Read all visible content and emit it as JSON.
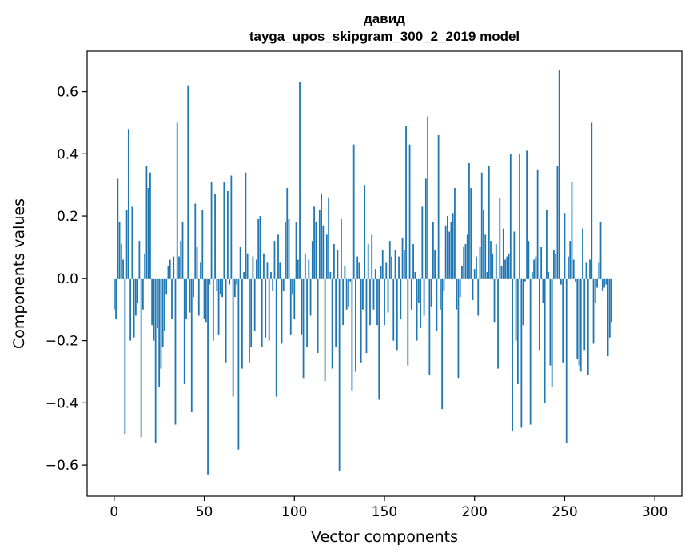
{
  "chart_data": {
    "type": "bar",
    "title": "давид",
    "subtitle": "tayga_upos_skipgram_300_2_2019 model",
    "xlabel": "Vector components",
    "ylabel": "Components values",
    "xlim": [
      -15,
      315
    ],
    "ylim": [
      -0.7,
      0.73
    ],
    "xticks": [
      0,
      50,
      100,
      150,
      200,
      250,
      300
    ],
    "yticks": [
      -0.6,
      -0.4,
      -0.2,
      0.0,
      0.2,
      0.4,
      0.6
    ],
    "xtick_labels": [
      "0",
      "50",
      "100",
      "150",
      "200",
      "250",
      "300"
    ],
    "ytick_labels": [
      "−0.6",
      "−0.4",
      "−0.2",
      "0.0",
      "0.2",
      "0.4",
      "0.6"
    ],
    "bar_color": "#1f77b4",
    "grid": false,
    "values": [
      -0.1,
      -0.13,
      0.32,
      0.18,
      0.11,
      0.06,
      -0.5,
      0.22,
      0.48,
      -0.2,
      0.23,
      -0.19,
      -0.12,
      -0.08,
      0.12,
      -0.51,
      -0.1,
      0.08,
      0.36,
      0.29,
      0.34,
      -0.15,
      -0.2,
      -0.53,
      -0.16,
      -0.35,
      -0.29,
      -0.22,
      -0.17,
      -0.05,
      0.04,
      0.06,
      -0.13,
      0.07,
      -0.47,
      0.5,
      0.07,
      0.12,
      0.18,
      -0.34,
      -0.13,
      0.62,
      -0.11,
      -0.43,
      -0.06,
      0.24,
      0.1,
      -0.12,
      0.05,
      0.22,
      -0.13,
      -0.14,
      -0.63,
      -0.02,
      0.31,
      -0.2,
      0.27,
      -0.04,
      -0.18,
      -0.05,
      -0.06,
      0.31,
      -0.27,
      0.28,
      -0.02,
      0.33,
      -0.38,
      -0.06,
      -0.02,
      -0.55,
      0.1,
      -0.29,
      0.02,
      0.34,
      0.08,
      -0.27,
      -0.22,
      0.07,
      -0.17,
      0.06,
      0.19,
      0.2,
      -0.22,
      0.08,
      -0.19,
      0.05,
      -0.2,
      0.02,
      -0.04,
      0.12,
      -0.38,
      0.14,
      0.05,
      -0.21,
      -0.04,
      0.18,
      0.29,
      0.19,
      -0.18,
      -0.05,
      -0.13,
      0.18,
      0.06,
      0.63,
      -0.18,
      -0.32,
      0.08,
      -0.22,
      0.06,
      -0.12,
      0.12,
      0.23,
      0.18,
      -0.24,
      0.22,
      0.27,
      0.17,
      -0.33,
      0.14,
      0.26,
      0.02,
      -0.29,
      0.11,
      -0.22,
      0.09,
      -0.62,
      0.19,
      -0.15,
      0.04,
      -0.1,
      -0.09,
      -0.01,
      -0.36,
      0.43,
      -0.3,
      0.07,
      0.05,
      -0.27,
      -0.1,
      0.3,
      -0.24,
      0.11,
      -0.15,
      0.14,
      -0.1,
      0.03,
      -0.15,
      -0.39,
      0.04,
      0.09,
      -0.15,
      0.05,
      -0.11,
      0.12,
      0.07,
      -0.2,
      0.09,
      -0.23,
      0.07,
      -0.13,
      0.13,
      0.09,
      0.49,
      -0.28,
      0.43,
      -0.1,
      0.11,
      0.02,
      -0.2,
      -0.08,
      -0.16,
      0.23,
      -0.12,
      0.32,
      0.52,
      -0.31,
      -0.09,
      0.18,
      0.09,
      -0.17,
      0.46,
      -0.1,
      -0.42,
      -0.04,
      0.17,
      0.2,
      0.15,
      0.18,
      0.21,
      0.29,
      -0.1,
      -0.32,
      -0.06,
      0.04,
      0.1,
      0.11,
      0.14,
      0.37,
      0.29,
      -0.07,
      0.03,
      0.07,
      -0.12,
      0.1,
      0.34,
      0.22,
      0.14,
      0.02,
      0.36,
      0.12,
      0.08,
      -0.14,
      0.11,
      -0.29,
      0.26,
      0.04,
      0.16,
      0.06,
      0.07,
      0.08,
      0.4,
      -0.49,
      0.15,
      -0.2,
      -0.34,
      0.4,
      -0.48,
      -0.15,
      -0.01,
      0.41,
      0.12,
      -0.47,
      0.02,
      0.06,
      0.07,
      0.35,
      -0.23,
      0.1,
      -0.08,
      -0.4,
      0.22,
      0.02,
      -0.28,
      -0.35,
      0.09,
      0.08,
      0.36,
      0.67,
      -0.02,
      -0.27,
      0.21,
      -0.53,
      0.07,
      0.12,
      0.31,
      0.06,
      -0.01,
      -0.26,
      -0.28,
      -0.3,
      0.16,
      -0.23,
      0.05,
      -0.31,
      0.06,
      0.5,
      -0.21,
      -0.08,
      -0.03,
      0.05,
      0.18,
      -0.04,
      -0.03,
      -0.02,
      -0.25,
      -0.19,
      -0.14
    ]
  }
}
